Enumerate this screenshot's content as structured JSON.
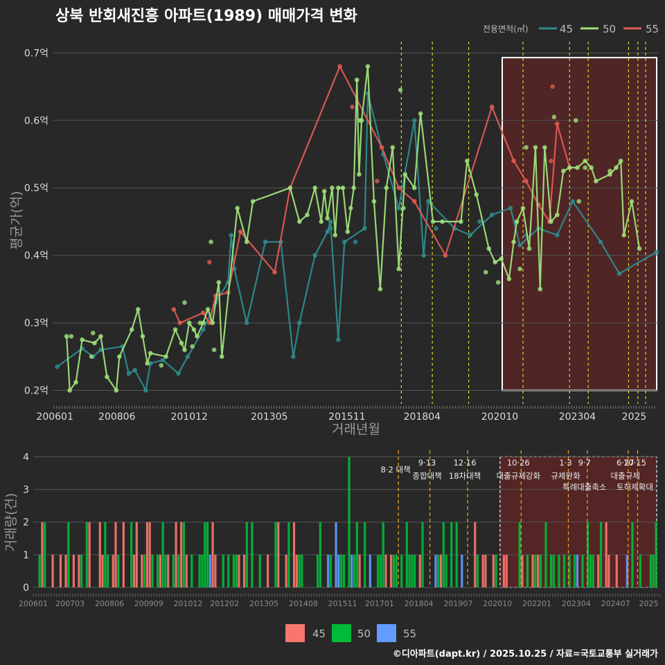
{
  "title": "상북 반회새진흥 아파트(1989) 매매가격 변화",
  "footer": "©디아파트(dapt.kr) / 2025.10.25 / 자료=국토교통부 실거래가",
  "colors": {
    "45": "#2e8b8e",
    "50": "#9fe07a",
    "55": "#e05a55",
    "bar45": "#f8766d",
    "bar50": "#00ba38",
    "bar55": "#619cff",
    "policy": "#e0d92a",
    "policyBottom": "#e8a020",
    "highlight": "#5c2424"
  },
  "chart_data": [
    {
      "type": "line",
      "name": "price",
      "ylabel": "평균가(억)",
      "xlabel": "거래년월",
      "ylim": [
        0.18,
        0.725
      ],
      "yticks": [
        0.2,
        0.3,
        0.4,
        0.5,
        0.6,
        0.7
      ],
      "ytick_labels": [
        "0.2억",
        "0.3억",
        "0.4억",
        "0.5억",
        "0.6억",
        "0.7억"
      ],
      "xlim": [
        2006.35,
        2025.85
      ],
      "xticks": [
        2006.42,
        2008.42,
        2010.75,
        2013.33,
        2015.83,
        2018.25,
        2020.75,
        2023.25,
        2025.08
      ],
      "xtick_labels": [
        "200601",
        "200806",
        "201012",
        "201305",
        "201511",
        "201804",
        "202010",
        "202304",
        "2025"
      ],
      "legend_title": "전용면적(㎡)",
      "legend": [
        "45",
        "50",
        "55"
      ],
      "highlight_range": [
        2020.83,
        2025.85
      ],
      "policy_lines": [
        2017.58,
        2018.58,
        2019.75,
        2021.5,
        2023.0,
        2023.6,
        2024.9,
        2025.2,
        2025.45
      ],
      "series": [
        {
          "name": "45",
          "points": [
            [
              2006.5,
              0.235
            ],
            [
              2007.3,
              0.262
            ],
            [
              2007.65,
              0.25
            ],
            [
              2007.9,
              0.26
            ],
            [
              2008.6,
              0.265
            ],
            [
              2008.8,
              0.225
            ],
            [
              2009.0,
              0.23
            ],
            [
              2009.35,
              0.2
            ],
            [
              2009.5,
              0.24
            ],
            [
              2009.9,
              0.245
            ],
            [
              2010.4,
              0.225
            ],
            [
              2010.7,
              0.25
            ],
            [
              2011.2,
              0.29
            ],
            [
              2011.6,
              0.33
            ],
            [
              2012.0,
              0.36
            ],
            [
              2012.1,
              0.43
            ],
            [
              2012.2,
              0.38
            ],
            [
              2012.6,
              0.3
            ],
            [
              2013.2,
              0.42
            ],
            [
              2013.7,
              0.42
            ],
            [
              2014.1,
              0.25
            ],
            [
              2014.3,
              0.3
            ],
            [
              2014.8,
              0.4
            ],
            [
              2015.2,
              0.435
            ],
            [
              2015.3,
              0.45
            ],
            [
              2015.55,
              0.275
            ],
            [
              2015.75,
              0.42
            ],
            [
              2016.4,
              0.44
            ],
            [
              2016.5,
              0.64
            ],
            [
              2017.0,
              0.55
            ],
            [
              2017.5,
              0.47
            ],
            [
              2018.0,
              0.6
            ],
            [
              2018.3,
              0.4
            ],
            [
              2018.45,
              0.48
            ],
            [
              2019.3,
              0.44
            ],
            [
              2019.8,
              0.43
            ],
            [
              2020.5,
              0.46
            ],
            [
              2021.1,
              0.47
            ],
            [
              2021.4,
              0.415
            ],
            [
              2022.0,
              0.44
            ],
            [
              2022.6,
              0.43
            ],
            [
              2023.1,
              0.48
            ],
            [
              2024.0,
              0.42
            ],
            [
              2024.6,
              0.373
            ],
            [
              2025.8,
              0.405
            ]
          ]
        },
        {
          "name": "50",
          "points": [
            [
              2006.8,
              0.28
            ],
            [
              2006.9,
              0.2
            ],
            [
              2007.1,
              0.212
            ],
            [
              2007.3,
              0.275
            ],
            [
              2007.7,
              0.27
            ],
            [
              2007.9,
              0.28
            ],
            [
              2008.1,
              0.22
            ],
            [
              2008.4,
              0.2
            ],
            [
              2008.5,
              0.25
            ],
            [
              2008.9,
              0.29
            ],
            [
              2009.1,
              0.32
            ],
            [
              2009.25,
              0.28
            ],
            [
              2009.4,
              0.24
            ],
            [
              2009.5,
              0.255
            ],
            [
              2010.0,
              0.25
            ],
            [
              2010.3,
              0.29
            ],
            [
              2010.5,
              0.27
            ],
            [
              2010.6,
              0.26
            ],
            [
              2010.75,
              0.3
            ],
            [
              2010.9,
              0.29
            ],
            [
              2011.0,
              0.28
            ],
            [
              2011.2,
              0.3
            ],
            [
              2011.35,
              0.32
            ],
            [
              2011.5,
              0.3
            ],
            [
              2011.7,
              0.36
            ],
            [
              2011.8,
              0.25
            ],
            [
              2012.3,
              0.47
            ],
            [
              2012.6,
              0.42
            ],
            [
              2012.8,
              0.48
            ],
            [
              2014.0,
              0.5
            ],
            [
              2014.3,
              0.45
            ],
            [
              2014.55,
              0.46
            ],
            [
              2014.8,
              0.5
            ],
            [
              2015.0,
              0.45
            ],
            [
              2015.1,
              0.495
            ],
            [
              2015.2,
              0.455
            ],
            [
              2015.35,
              0.5
            ],
            [
              2015.45,
              0.43
            ],
            [
              2015.55,
              0.5
            ],
            [
              2015.7,
              0.5
            ],
            [
              2015.85,
              0.435
            ],
            [
              2016.05,
              0.5
            ],
            [
              2016.15,
              0.66
            ],
            [
              2016.22,
              0.52
            ],
            [
              2016.3,
              0.6
            ],
            [
              2016.5,
              0.68
            ],
            [
              2016.7,
              0.48
            ],
            [
              2016.9,
              0.35
            ],
            [
              2017.1,
              0.5
            ],
            [
              2017.3,
              0.56
            ],
            [
              2017.5,
              0.38
            ],
            [
              2017.7,
              0.52
            ],
            [
              2018.0,
              0.5
            ],
            [
              2018.2,
              0.61
            ],
            [
              2018.6,
              0.45
            ],
            [
              2018.9,
              0.45
            ],
            [
              2019.5,
              0.45
            ],
            [
              2019.7,
              0.54
            ],
            [
              2020.0,
              0.49
            ],
            [
              2020.4,
              0.41
            ],
            [
              2020.6,
              0.39
            ],
            [
              2020.8,
              0.395
            ],
            [
              2021.05,
              0.365
            ],
            [
              2021.2,
              0.42
            ],
            [
              2021.3,
              0.45
            ],
            [
              2021.5,
              0.47
            ],
            [
              2021.7,
              0.41
            ],
            [
              2021.9,
              0.56
            ],
            [
              2022.05,
              0.35
            ],
            [
              2022.2,
              0.56
            ],
            [
              2022.4,
              0.45
            ],
            [
              2022.6,
              0.46
            ],
            [
              2022.8,
              0.525
            ],
            [
              2023.0,
              0.53
            ],
            [
              2023.25,
              0.53
            ],
            [
              2023.5,
              0.54
            ],
            [
              2023.7,
              0.53
            ],
            [
              2023.85,
              0.51
            ],
            [
              2024.3,
              0.52
            ],
            [
              2024.5,
              0.53
            ],
            [
              2024.65,
              0.54
            ],
            [
              2024.75,
              0.43
            ],
            [
              2025.0,
              0.48
            ],
            [
              2025.25,
              0.41
            ]
          ]
        },
        {
          "name": "55",
          "points": [
            [
              2010.25,
              0.32
            ],
            [
              2010.45,
              0.3
            ],
            [
              2011.2,
              0.315
            ],
            [
              2011.4,
              0.3
            ],
            [
              2011.6,
              0.34
            ],
            [
              2012.0,
              0.345
            ],
            [
              2012.4,
              0.435
            ],
            [
              2013.5,
              0.375
            ],
            [
              2014.0,
              0.5
            ],
            [
              2015.6,
              0.68
            ],
            [
              2016.95,
              0.56
            ],
            [
              2017.5,
              0.5
            ],
            [
              2018.0,
              0.48
            ],
            [
              2019.0,
              0.4
            ],
            [
              2020.5,
              0.62
            ],
            [
              2021.2,
              0.54
            ],
            [
              2021.6,
              0.51
            ],
            [
              2022.0,
              0.475
            ],
            [
              2022.35,
              0.45
            ],
            [
              2022.6,
              0.595
            ],
            [
              2023.0,
              0.53
            ]
          ]
        }
      ],
      "extra_points": {
        "45": [
          [
            2015.3,
            0.44
          ],
          [
            2016.1,
            0.42
          ],
          [
            2018.7,
            0.44
          ],
          [
            2020.1,
            0.45
          ],
          [
            2021.6,
            0.43
          ]
        ],
        "50": [
          [
            2006.95,
            0.28
          ],
          [
            2007.6,
            0.25
          ],
          [
            2007.65,
            0.285
          ],
          [
            2009.85,
            0.237
          ],
          [
            2010.6,
            0.33
          ],
          [
            2010.85,
            0.265
          ],
          [
            2011.1,
            0.3
          ],
          [
            2011.45,
            0.42
          ],
          [
            2011.55,
            0.26
          ],
          [
            2015.95,
            0.47
          ],
          [
            2016.25,
            0.6
          ],
          [
            2017.55,
            0.645
          ],
          [
            2017.65,
            0.47
          ],
          [
            2020.3,
            0.375
          ],
          [
            2020.7,
            0.36
          ],
          [
            2021.4,
            0.38
          ],
          [
            2021.6,
            0.56
          ],
          [
            2022.5,
            0.605
          ],
          [
            2023.2,
            0.6
          ],
          [
            2023.3,
            0.48
          ],
          [
            2023.5,
            0.53
          ],
          [
            2024.3,
            0.525
          ]
        ],
        "55": [
          [
            2011.4,
            0.39
          ],
          [
            2016.0,
            0.62
          ],
          [
            2016.8,
            0.51
          ],
          [
            2022.4,
            0.54
          ],
          [
            2022.45,
            0.65
          ]
        ]
      }
    },
    {
      "type": "bar",
      "name": "volume",
      "ylabel": "거래량(건)",
      "ylim": [
        0,
        4.2
      ],
      "yticks": [
        0,
        1,
        2,
        3,
        4
      ],
      "ytick_labels": [
        "0",
        "1",
        "2",
        "3",
        "4"
      ],
      "xtick_labels": [
        "200601",
        "200703",
        "200806",
        "200909",
        "201012",
        "201202",
        "201305",
        "201408",
        "201511",
        "201701",
        "201804",
        "201907",
        "202010",
        "202201",
        "202304",
        "202407",
        "2025"
      ],
      "legend": [
        "45",
        "50",
        "55"
      ],
      "annotations": [
        {
          "x": 2017.6,
          "line1": "8·2 대책",
          "line2": ""
        },
        {
          "x": 2018.6,
          "line1": "9·13",
          "line2": "종합대책"
        },
        {
          "x": 2019.8,
          "line1": "12·16",
          "line2": "18차대책"
        },
        {
          "x": 2021.5,
          "line1": "10·26",
          "line2": "대출규제강화"
        },
        {
          "x": 2023.0,
          "line1": "1·3",
          "line2": "규제완화"
        },
        {
          "x": 2023.6,
          "line1": "9·7",
          "line2": "특례대출축소"
        },
        {
          "x": 2024.9,
          "line1": "6·27",
          "line2": "대출규제"
        },
        {
          "x": 2025.2,
          "line1": "10·15",
          "line2": "토허제확대"
        }
      ],
      "bars_seed": 20251025
    }
  ]
}
